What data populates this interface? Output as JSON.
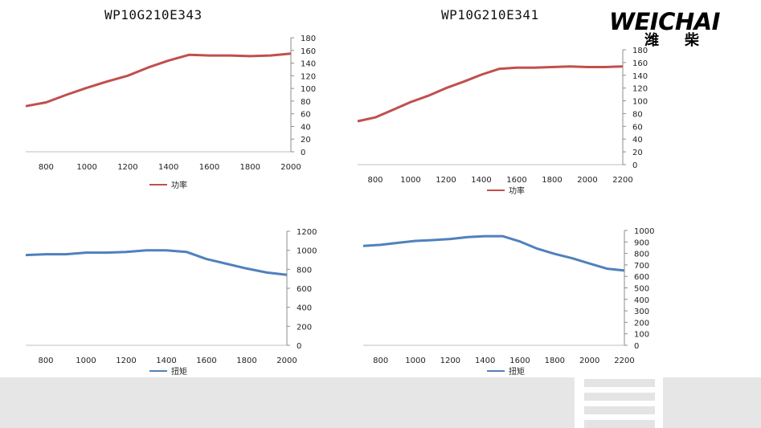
{
  "titles": {
    "left": "WP10G210E343",
    "right": "WP10G210E341"
  },
  "logo": {
    "brand": "WEICHAI",
    "brand_cn_1": "潍",
    "brand_cn_2": "柴"
  },
  "colors": {
    "power": "#C0504D",
    "torque": "#4F81BD",
    "footer": "#e6e6e6"
  },
  "chart_data": [
    {
      "type": "line",
      "legend": "功率",
      "x": [
        700,
        800,
        900,
        1000,
        1100,
        1200,
        1300,
        1400,
        1500,
        1600,
        1700,
        1800,
        1900,
        2000
      ],
      "series": [
        {
          "name": "功率",
          "values": [
            72,
            78,
            90,
            101,
            111,
            120,
            133,
            144,
            153,
            152,
            152,
            151,
            152,
            155
          ]
        }
      ],
      "xticks": [
        800,
        1000,
        1200,
        1400,
        1600,
        1800,
        2000
      ],
      "yticks": [
        0,
        20,
        40,
        60,
        80,
        100,
        120,
        140,
        160,
        180
      ],
      "xlim": [
        700,
        2000
      ],
      "ylim": [
        0,
        180
      ],
      "y_axis_side": "right",
      "legend_position": "bottom"
    },
    {
      "type": "line",
      "legend": "功率",
      "x": [
        700,
        800,
        900,
        1000,
        1100,
        1200,
        1300,
        1400,
        1500,
        1600,
        1700,
        1800,
        1900,
        2000,
        2100,
        2200
      ],
      "series": [
        {
          "name": "功率",
          "values": [
            68,
            74,
            86,
            98,
            108,
            120,
            130,
            141,
            150,
            152,
            152,
            153,
            154,
            153,
            153,
            154
          ]
        }
      ],
      "xticks": [
        800,
        1000,
        1200,
        1400,
        1600,
        1800,
        2000,
        2200
      ],
      "yticks": [
        0,
        20,
        40,
        60,
        80,
        100,
        120,
        140,
        160,
        180
      ],
      "xlim": [
        700,
        2200
      ],
      "ylim": [
        0,
        180
      ],
      "y_axis_side": "right",
      "legend_position": "bottom"
    },
    {
      "type": "line",
      "legend": "扭矩",
      "x": [
        700,
        800,
        900,
        1000,
        1100,
        1200,
        1300,
        1400,
        1500,
        1600,
        1700,
        1800,
        1900,
        2000
      ],
      "series": [
        {
          "name": "扭矩",
          "values": [
            950,
            958,
            958,
            975,
            975,
            983,
            1000,
            1000,
            983,
            908,
            858,
            808,
            766,
            741
          ]
        }
      ],
      "xticks": [
        800,
        1000,
        1200,
        1400,
        1600,
        1800,
        2000
      ],
      "yticks": [
        0,
        200,
        400,
        600,
        800,
        1000,
        1200
      ],
      "xlim": [
        700,
        2000
      ],
      "ylim": [
        0,
        1200
      ],
      "y_axis_side": "right",
      "legend_position": "bottom"
    },
    {
      "type": "line",
      "legend": "扭矩",
      "x": [
        700,
        800,
        900,
        1000,
        1100,
        1200,
        1300,
        1400,
        1500,
        1600,
        1700,
        1800,
        1900,
        2000,
        2100,
        2200
      ],
      "series": [
        {
          "name": "扭矩",
          "values": [
            865,
            875,
            892,
            909,
            916,
            926,
            943,
            950,
            950,
            904,
            841,
            796,
            758,
            712,
            667,
            651
          ]
        }
      ],
      "xticks": [
        800,
        1000,
        1200,
        1400,
        1600,
        1800,
        2000,
        2200
      ],
      "yticks": [
        0,
        100,
        200,
        300,
        400,
        500,
        600,
        700,
        800,
        900,
        1000
      ],
      "xlim": [
        700,
        2200
      ],
      "ylim": [
        0,
        1000
      ],
      "y_axis_side": "right",
      "legend_position": "bottom"
    }
  ]
}
